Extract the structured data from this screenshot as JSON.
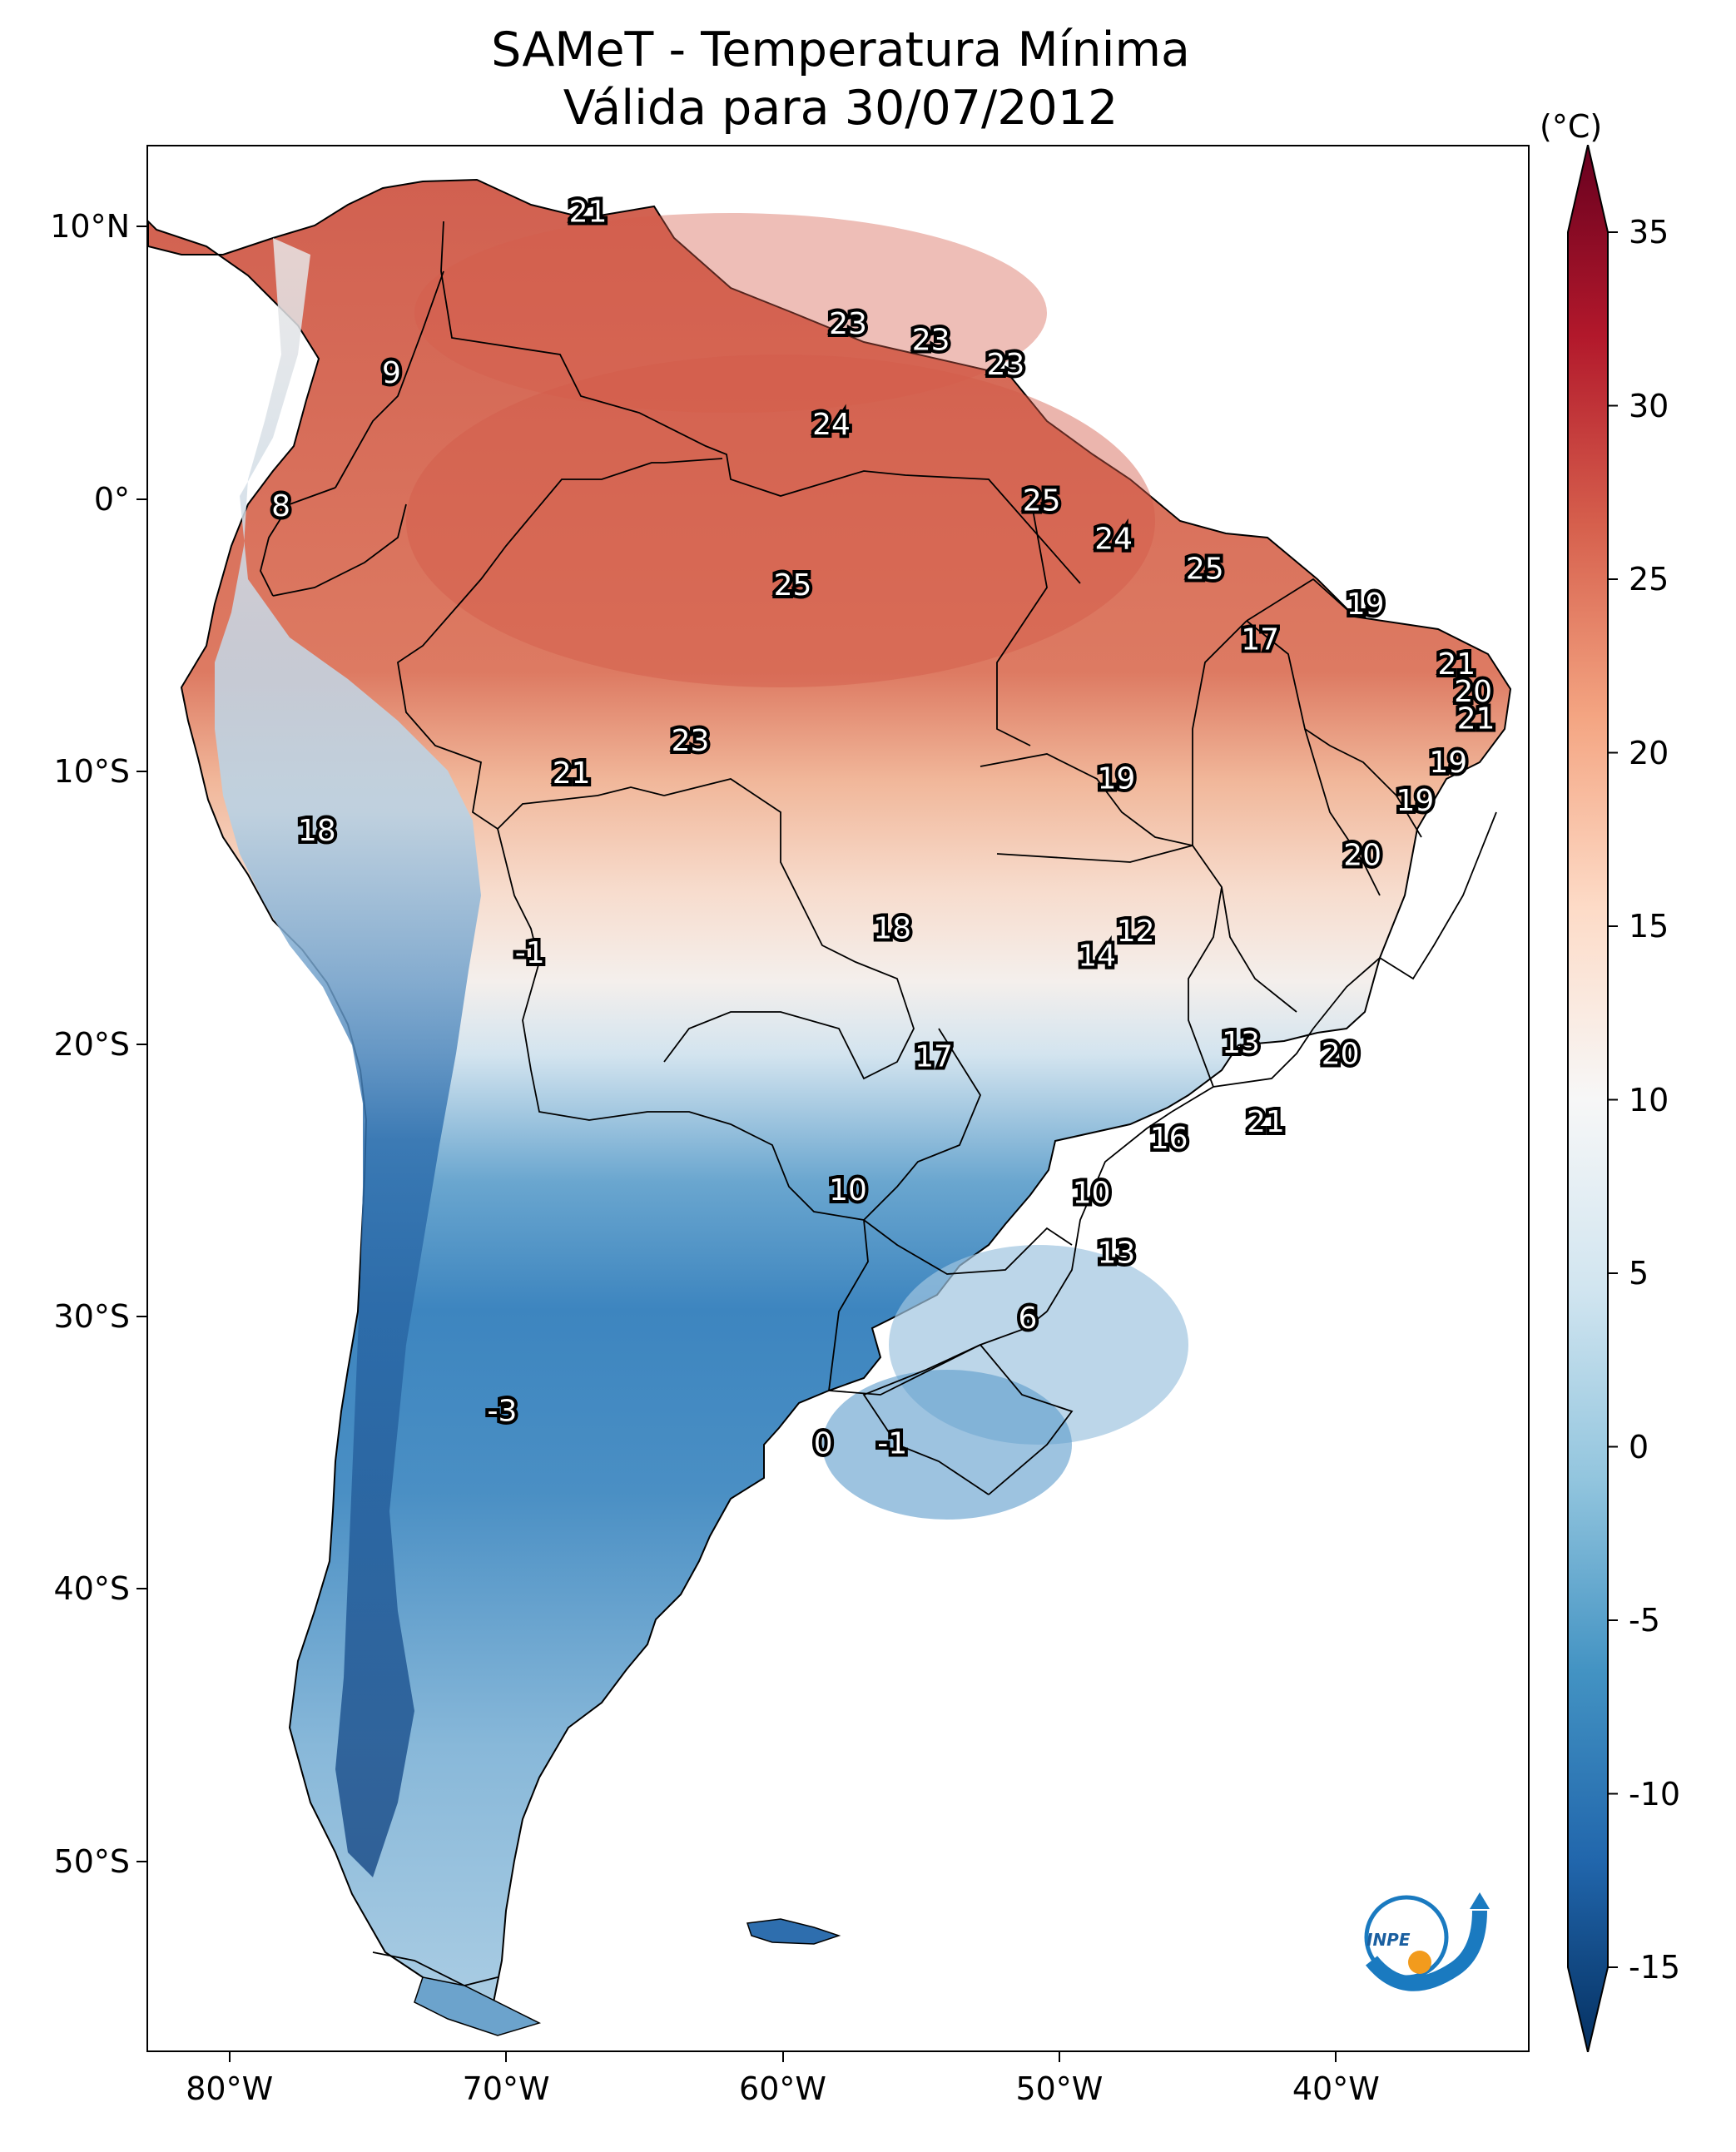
{
  "title_line1": "SAMeT - Temperatura Mínima",
  "title_line2": "Válida para 30/07/2012",
  "units": "(°C)",
  "colormap": "RdBu_r",
  "axes": {
    "lon_range": [
      -83,
      -33
    ],
    "lat_range": [
      -57,
      13
    ],
    "x_ticks": [
      {
        "lon": -80,
        "label": "80°W"
      },
      {
        "lon": -70,
        "label": "70°W"
      },
      {
        "lon": -60,
        "label": "60°W"
      },
      {
        "lon": -50,
        "label": "50°W"
      },
      {
        "lon": -40,
        "label": "40°W"
      }
    ],
    "y_ticks": [
      {
        "lat": 10,
        "label": "10°N"
      },
      {
        "lat": 0,
        "label": "0°"
      },
      {
        "lat": -10,
        "label": "10°S"
      },
      {
        "lat": -20,
        "label": "20°S"
      },
      {
        "lat": -30,
        "label": "30°S"
      },
      {
        "lat": -40,
        "label": "40°S"
      },
      {
        "lat": -50,
        "label": "50°S"
      }
    ]
  },
  "colorbar": {
    "min": -15,
    "max": 35,
    "extend": "both",
    "ticks": [
      {
        "value": 35,
        "label": "35"
      },
      {
        "value": 30,
        "label": "30"
      },
      {
        "value": 25,
        "label": "25"
      },
      {
        "value": 20,
        "label": "20"
      },
      {
        "value": 15,
        "label": "15"
      },
      {
        "value": 10,
        "label": "10"
      },
      {
        "value": 5,
        "label": "5"
      },
      {
        "value": 0,
        "label": "0"
      },
      {
        "value": -5,
        "label": "-5"
      },
      {
        "value": -10,
        "label": "-10"
      },
      {
        "value": -15,
        "label": "-15"
      }
    ]
  },
  "station_labels": [
    {
      "lon": -67.1,
      "lat": 10.6,
      "text": "21"
    },
    {
      "lon": -57.7,
      "lat": 6.5,
      "text": "23"
    },
    {
      "lon": -54.7,
      "lat": 5.9,
      "text": "23"
    },
    {
      "lon": -52.0,
      "lat": 5.0,
      "text": "23"
    },
    {
      "lon": -58.3,
      "lat": 2.8,
      "text": "24"
    },
    {
      "lon": -74.2,
      "lat": 4.7,
      "text": "9"
    },
    {
      "lon": -78.2,
      "lat": -0.2,
      "text": "8"
    },
    {
      "lon": -50.7,
      "lat": 0.0,
      "text": "25"
    },
    {
      "lon": -48.1,
      "lat": -1.4,
      "text": "24"
    },
    {
      "lon": -44.8,
      "lat": -2.5,
      "text": "25"
    },
    {
      "lon": -59.7,
      "lat": -3.1,
      "text": "25"
    },
    {
      "lon": -39.0,
      "lat": -3.8,
      "text": "19"
    },
    {
      "lon": -42.8,
      "lat": -5.1,
      "text": "17"
    },
    {
      "lon": -35.7,
      "lat": -6.0,
      "text": "21"
    },
    {
      "lon": -35.1,
      "lat": -7.0,
      "text": "20"
    },
    {
      "lon": -35.0,
      "lat": -8.0,
      "text": "21"
    },
    {
      "lon": -63.4,
      "lat": -8.8,
      "text": "23"
    },
    {
      "lon": -36.0,
      "lat": -9.6,
      "text": "19"
    },
    {
      "lon": -67.7,
      "lat": -10.0,
      "text": "21"
    },
    {
      "lon": -48.0,
      "lat": -10.2,
      "text": "19"
    },
    {
      "lon": -37.2,
      "lat": -11.0,
      "text": "19"
    },
    {
      "lon": -76.9,
      "lat": -12.1,
      "text": "18"
    },
    {
      "lon": -39.1,
      "lat": -13.0,
      "text": "20"
    },
    {
      "lon": -47.3,
      "lat": -15.8,
      "text": "12"
    },
    {
      "lon": -56.1,
      "lat": -15.7,
      "text": "18"
    },
    {
      "lon": -48.7,
      "lat": -16.7,
      "text": "14"
    },
    {
      "lon": -69.2,
      "lat": -16.6,
      "text": "-1"
    },
    {
      "lon": -43.5,
      "lat": -19.9,
      "text": "13"
    },
    {
      "lon": -54.6,
      "lat": -20.4,
      "text": "17"
    },
    {
      "lon": -39.9,
      "lat": -20.3,
      "text": "20"
    },
    {
      "lon": -42.6,
      "lat": -22.8,
      "text": "21"
    },
    {
      "lon": -46.1,
      "lat": -23.4,
      "text": "16"
    },
    {
      "lon": -57.7,
      "lat": -25.3,
      "text": "10"
    },
    {
      "lon": -48.9,
      "lat": -25.4,
      "text": "10"
    },
    {
      "lon": -48.0,
      "lat": -27.6,
      "text": "13"
    },
    {
      "lon": -51.2,
      "lat": -30.0,
      "text": "6"
    },
    {
      "lon": -70.2,
      "lat": -33.4,
      "text": "-3"
    },
    {
      "lon": -58.6,
      "lat": -34.6,
      "text": "0"
    },
    {
      "lon": -56.1,
      "lat": -34.6,
      "text": "-1"
    }
  ],
  "logo": {
    "name": "INPE",
    "text": "INPE"
  }
}
